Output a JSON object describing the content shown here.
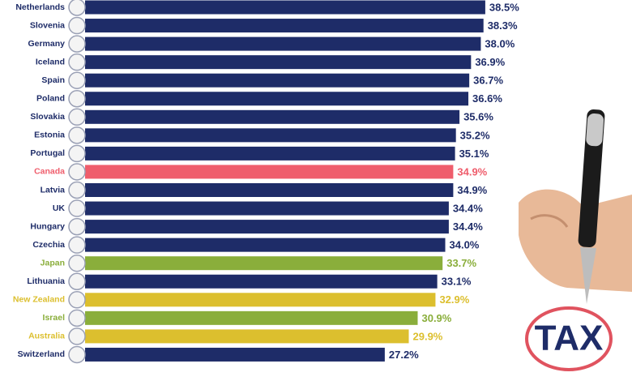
{
  "chart_data": {
    "type": "hbar",
    "categories": [
      "Netherlands",
      "Slovenia",
      "Germany",
      "Iceland",
      "Spain",
      "Poland",
      "Slovakia",
      "Estonia",
      "Portugal",
      "Canada",
      "Latvia",
      "UK",
      "Hungary",
      "Czechia",
      "Japan",
      "Lithuania",
      "New Zealand",
      "Israel",
      "Australia",
      "Switzerland"
    ],
    "values": [
      38.5,
      38.3,
      38,
      36.9,
      36.7,
      36.6,
      35.6,
      35.2,
      35.1,
      34.9,
      34.9,
      34.4,
      34.4,
      34,
      33.7,
      33.1,
      32.9,
      30.9,
      29.9,
      27.2
    ],
    "value_labels": [
      "38.5%",
      "38.3%",
      "38.0%",
      "36.9%",
      "36.7%",
      "36.6%",
      "35.6%",
      "35.2%",
      "35.1%",
      "34.9%",
      "34.9%",
      "34.4%",
      "34.4%",
      "34.0%",
      "33.7%",
      "33.1%",
      "32.9%",
      "30.9%",
      "29.9%",
      "27.2%"
    ],
    "colors": [
      "#1e2c68",
      "#1e2c68",
      "#1e2c68",
      "#1e2c68",
      "#1e2c68",
      "#1e2c68",
      "#1e2c68",
      "#1e2c68",
      "#1e2c68",
      "#ef5d6c",
      "#1e2c68",
      "#1e2c68",
      "#1e2c68",
      "#1e2c68",
      "#8aae3b",
      "#1e2c68",
      "#dcbf2e",
      "#8aae3b",
      "#dcbf2e",
      "#1e2c68"
    ],
    "xlim": [
      -6.5,
      55
    ]
  },
  "decoration": {
    "stamp": "TAX"
  }
}
